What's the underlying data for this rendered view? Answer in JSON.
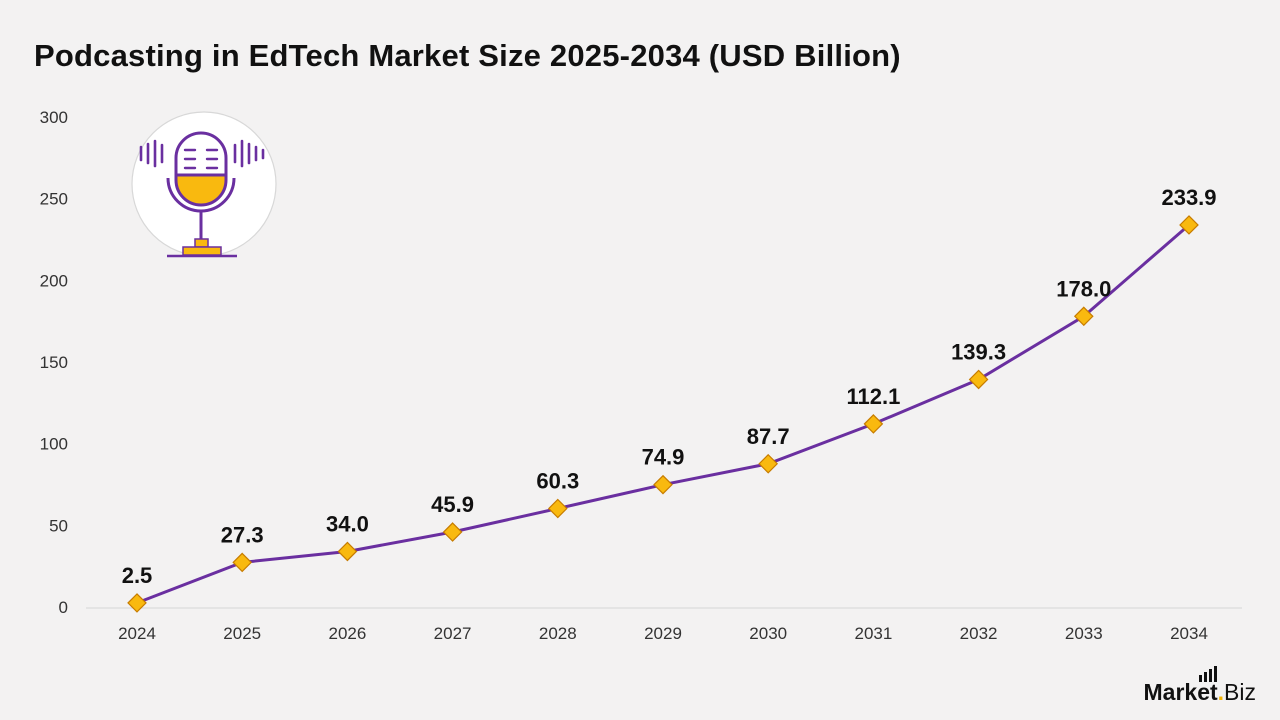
{
  "header": {
    "title": "Podcasting in EdTech Market Size 2025-2034 (USD Billion)"
  },
  "brand": {
    "name_prefix": "Market",
    "name_dot": ".",
    "name_suffix": "Biz"
  },
  "icon": "microphone-icon",
  "colors": {
    "line": "#6a2fa0",
    "marker_fill": "#f9b90f",
    "marker_stroke": "#c77c00",
    "text": "#111111",
    "background": "#f3f2f2"
  },
  "chart_data": {
    "type": "line",
    "title": "Podcasting in EdTech Market Size 2025-2034 (USD Billion)",
    "xlabel": "",
    "ylabel": "",
    "categories": [
      "2024",
      "2025",
      "2026",
      "2027",
      "2028",
      "2029",
      "2030",
      "2031",
      "2032",
      "2033",
      "2034"
    ],
    "values": [
      2.5,
      27.3,
      34.0,
      45.9,
      60.3,
      74.9,
      87.7,
      112.1,
      139.3,
      178.0,
      233.9
    ],
    "data_labels": [
      "2.5",
      "27.3",
      "34.0",
      "45.9",
      "60.3",
      "74.9",
      "87.7",
      "112.1",
      "139.3",
      "178.0",
      "233.9"
    ],
    "yticks": [
      0,
      50,
      100,
      150,
      200,
      250,
      300
    ],
    "ylim": [
      0,
      300
    ],
    "grid": false,
    "legend": "none"
  }
}
